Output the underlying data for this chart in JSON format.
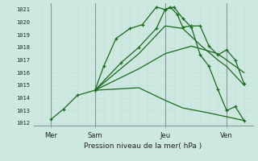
{
  "background_color": "#cce8e0",
  "plot_bg": "#cce8e0",
  "grid_color": "#aacccc",
  "grid_color_minor": "#c8ddd8",
  "line_color": "#1a6b1a",
  "xlabel": "Pression niveau de la mer( hPa )",
  "ylim": [
    1011.8,
    1021.5
  ],
  "yticks": [
    1012,
    1013,
    1014,
    1015,
    1016,
    1017,
    1018,
    1019,
    1020,
    1021
  ],
  "xlim": [
    -0.5,
    12.0
  ],
  "xtick_labels": [
    "Mer",
    "Sam",
    "Jeu",
    "Ven"
  ],
  "xtick_positions": [
    0.5,
    3.0,
    7.0,
    10.5
  ],
  "vline_positions": [
    0.5,
    3.0,
    7.0,
    10.5
  ],
  "series": [
    {
      "x": [
        0.5,
        1.2,
        2.0,
        3.0,
        3.5,
        4.2,
        5.0,
        5.7,
        6.5,
        7.0,
        7.3,
        7.7,
        8.0,
        8.5,
        9.0,
        9.5,
        10.0,
        10.5,
        11.0,
        11.5
      ],
      "y": [
        1012.3,
        1013.1,
        1014.2,
        1014.6,
        1016.5,
        1018.7,
        1019.5,
        1019.8,
        1021.2,
        1021.0,
        1021.2,
        1020.6,
        1019.6,
        1019.7,
        1019.7,
        1018.1,
        1017.4,
        1017.8,
        1017.0,
        1015.1
      ],
      "marker": "+"
    },
    {
      "x": [
        3.0,
        4.5,
        5.5,
        6.5,
        7.0,
        7.5,
        8.0,
        8.5,
        9.0,
        9.5,
        10.0,
        10.5,
        11.0,
        11.5
      ],
      "y": [
        1014.6,
        1016.8,
        1018.0,
        1019.5,
        1021.0,
        1021.2,
        1020.3,
        1019.6,
        1017.4,
        1016.5,
        1014.7,
        1013.0,
        1013.3,
        1012.2
      ],
      "marker": "+"
    },
    {
      "x": [
        3.0,
        5.5,
        7.0,
        8.0,
        9.0,
        10.0,
        10.5,
        11.5
      ],
      "y": [
        1014.6,
        1017.5,
        1019.7,
        1019.5,
        1018.2,
        1017.0,
        1016.5,
        1015.0
      ],
      "marker": null
    },
    {
      "x": [
        3.0,
        5.5,
        7.0,
        8.5,
        10.0,
        10.5,
        11.5
      ],
      "y": [
        1014.6,
        1016.3,
        1017.5,
        1018.1,
        1017.5,
        1017.0,
        1016.0
      ],
      "marker": null
    },
    {
      "x": [
        3.0,
        5.5,
        7.0,
        8.0,
        9.5,
        10.5,
        11.5
      ],
      "y": [
        1014.6,
        1014.8,
        1013.8,
        1013.2,
        1012.8,
        1012.5,
        1012.2
      ],
      "marker": null
    }
  ]
}
